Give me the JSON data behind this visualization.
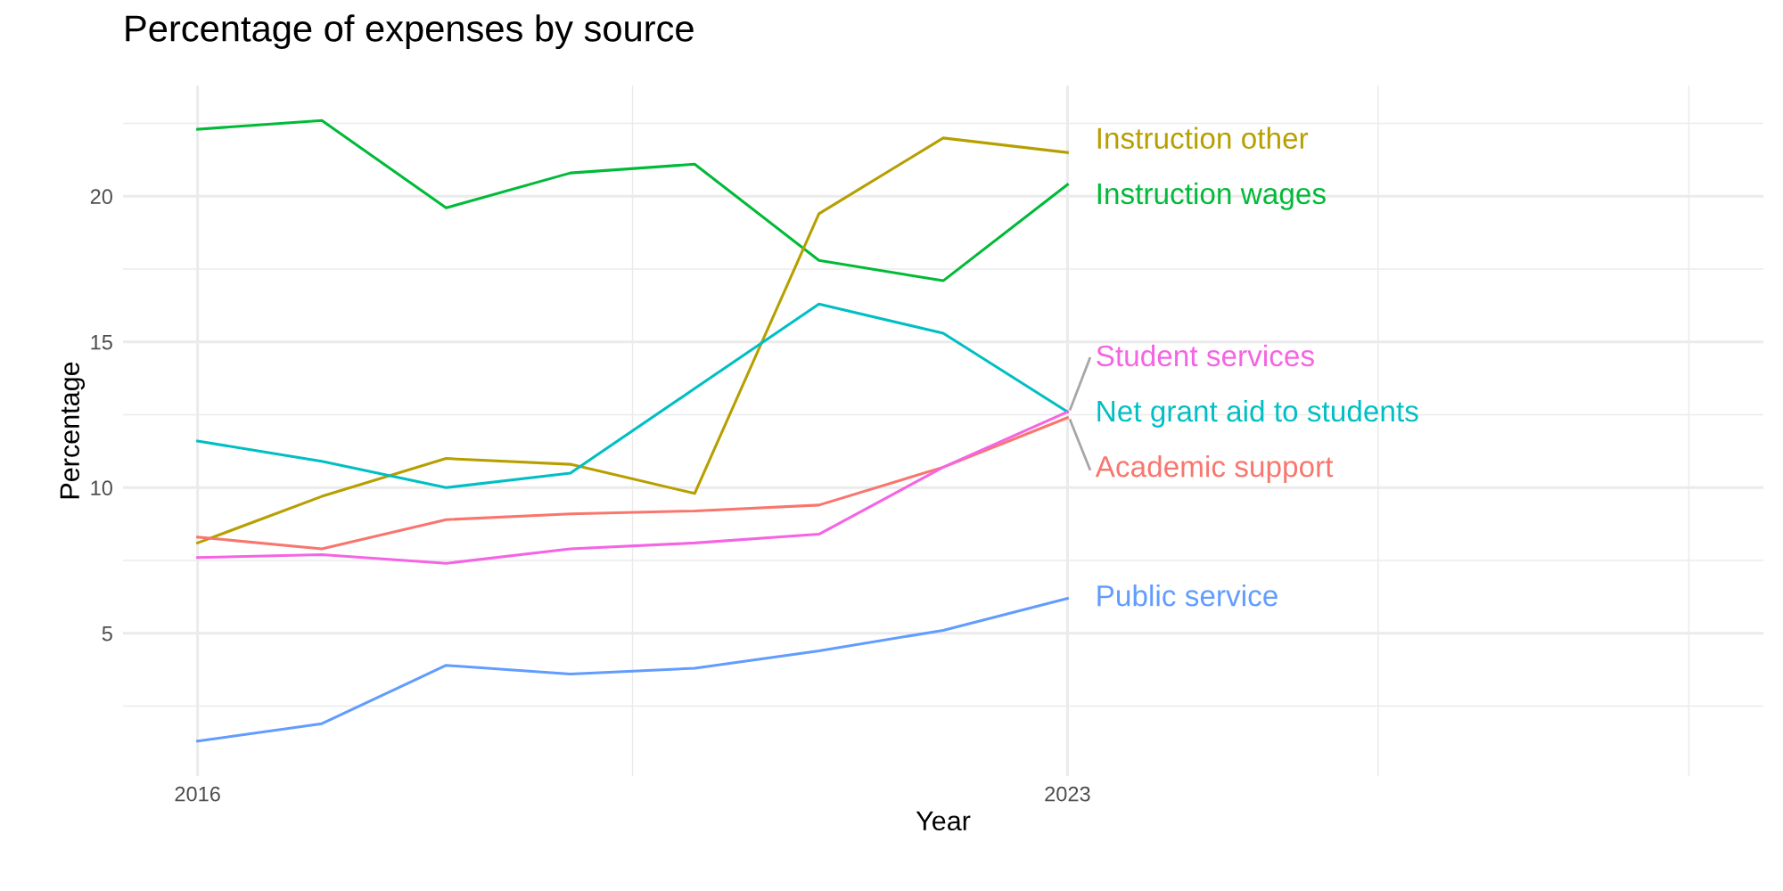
{
  "chart_data": {
    "type": "line",
    "title": "Percentage of expenses by source",
    "xlabel": "Year",
    "ylabel": "Percentage",
    "x": [
      2016,
      2017,
      2018,
      2019,
      2020,
      2021,
      2022,
      2023
    ],
    "series": [
      {
        "name": "Instruction wages",
        "color": "#00ba38",
        "values": [
          22.3,
          22.6,
          19.6,
          20.8,
          21.1,
          17.8,
          17.1,
          20.4
        ]
      },
      {
        "name": "Instruction other",
        "color": "#b79f00",
        "values": [
          8.1,
          9.7,
          11.0,
          10.8,
          9.8,
          19.4,
          22.0,
          21.5
        ]
      },
      {
        "name": "Academic support",
        "color": "#f8766d",
        "values": [
          8.3,
          7.9,
          8.9,
          9.1,
          9.2,
          9.4,
          10.7,
          12.4
        ]
      },
      {
        "name": "Net grant aid to students",
        "color": "#00bfc4",
        "values": [
          11.6,
          10.9,
          10.0,
          10.5,
          13.4,
          16.3,
          15.3,
          12.6
        ]
      },
      {
        "name": "Student services",
        "color": "#f564e3",
        "values": [
          7.6,
          7.7,
          7.4,
          7.9,
          8.1,
          8.4,
          10.7,
          12.6
        ]
      },
      {
        "name": "Public service",
        "color": "#619cff",
        "values": [
          1.3,
          1.9,
          3.9,
          3.6,
          3.8,
          4.4,
          5.1,
          6.2
        ]
      }
    ],
    "xlim": [
      2015.4,
      2028.6
    ],
    "ylim": [
      0.1,
      23.8
    ],
    "xticks": [
      2016,
      {
        "value": 2019.5,
        "label": null
      },
      2023,
      {
        "value": 2025.5,
        "label": null
      },
      {
        "value": 2028,
        "label": null
      }
    ],
    "yticks": [
      {
        "value": 2.5,
        "label": null
      },
      5,
      {
        "value": 7.5,
        "label": null
      },
      10,
      {
        "value": 12.5,
        "label": null
      },
      15,
      {
        "value": 17.5,
        "label": null
      },
      20,
      {
        "value": 22.5,
        "label": null
      }
    ],
    "grid": true,
    "legend": false,
    "marker": "none",
    "line_style": "solid"
  }
}
